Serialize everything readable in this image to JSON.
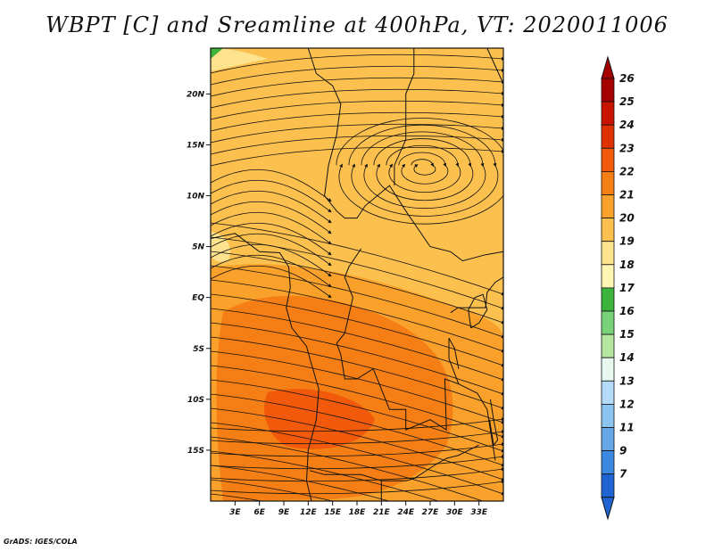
{
  "title": "WBPT [C] and Sreamline at 400hPa, VT: 2020011006",
  "credit": "GrADS: IGES/COLA",
  "map": {
    "lon_range": [
      0,
      36
    ],
    "lat_range": [
      -20,
      24.5
    ],
    "lat_ticks": [
      {
        "value": 20,
        "label": "20N"
      },
      {
        "value": 15,
        "label": "15N"
      },
      {
        "value": 10,
        "label": "10N"
      },
      {
        "value": 5,
        "label": "5N"
      },
      {
        "value": 0,
        "label": "EQ"
      },
      {
        "value": -5,
        "label": "5S"
      },
      {
        "value": -10,
        "label": "10S"
      },
      {
        "value": -15,
        "label": "15S"
      }
    ],
    "lon_ticks": [
      {
        "value": 3,
        "label": "3E"
      },
      {
        "value": 6,
        "label": "6E"
      },
      {
        "value": 9,
        "label": "9E"
      },
      {
        "value": 12,
        "label": "12E"
      },
      {
        "value": 15,
        "label": "15E"
      },
      {
        "value": 18,
        "label": "18E"
      },
      {
        "value": 21,
        "label": "21E"
      },
      {
        "value": 24,
        "label": "24E"
      },
      {
        "value": 27,
        "label": "27E"
      },
      {
        "value": 30,
        "label": "30E"
      },
      {
        "value": 33,
        "label": "33E"
      }
    ],
    "vortex_center": {
      "lon": 26,
      "lat": 13
    }
  },
  "colorbar": {
    "labels": [
      "26",
      "25",
      "24",
      "23",
      "22",
      "21",
      "20",
      "19",
      "18",
      "17",
      "16",
      "15",
      "14",
      "13",
      "12",
      "11",
      "9",
      "7"
    ],
    "colors": [
      "#a50000",
      "#c81400",
      "#e03200",
      "#f05a0a",
      "#f57f14",
      "#f9a12a",
      "#fbc04e",
      "#fde38e",
      "#fff6b4",
      "#3cb43c",
      "#78d278",
      "#b4e6a0",
      "#e6f8f0",
      "#b4dcf8",
      "#8cc4f0",
      "#64a6e8",
      "#3c88e0",
      "#1f64d2"
    ],
    "top_triangle_color": "#a50000",
    "bottom_triangle_color": "#1f64d2"
  }
}
